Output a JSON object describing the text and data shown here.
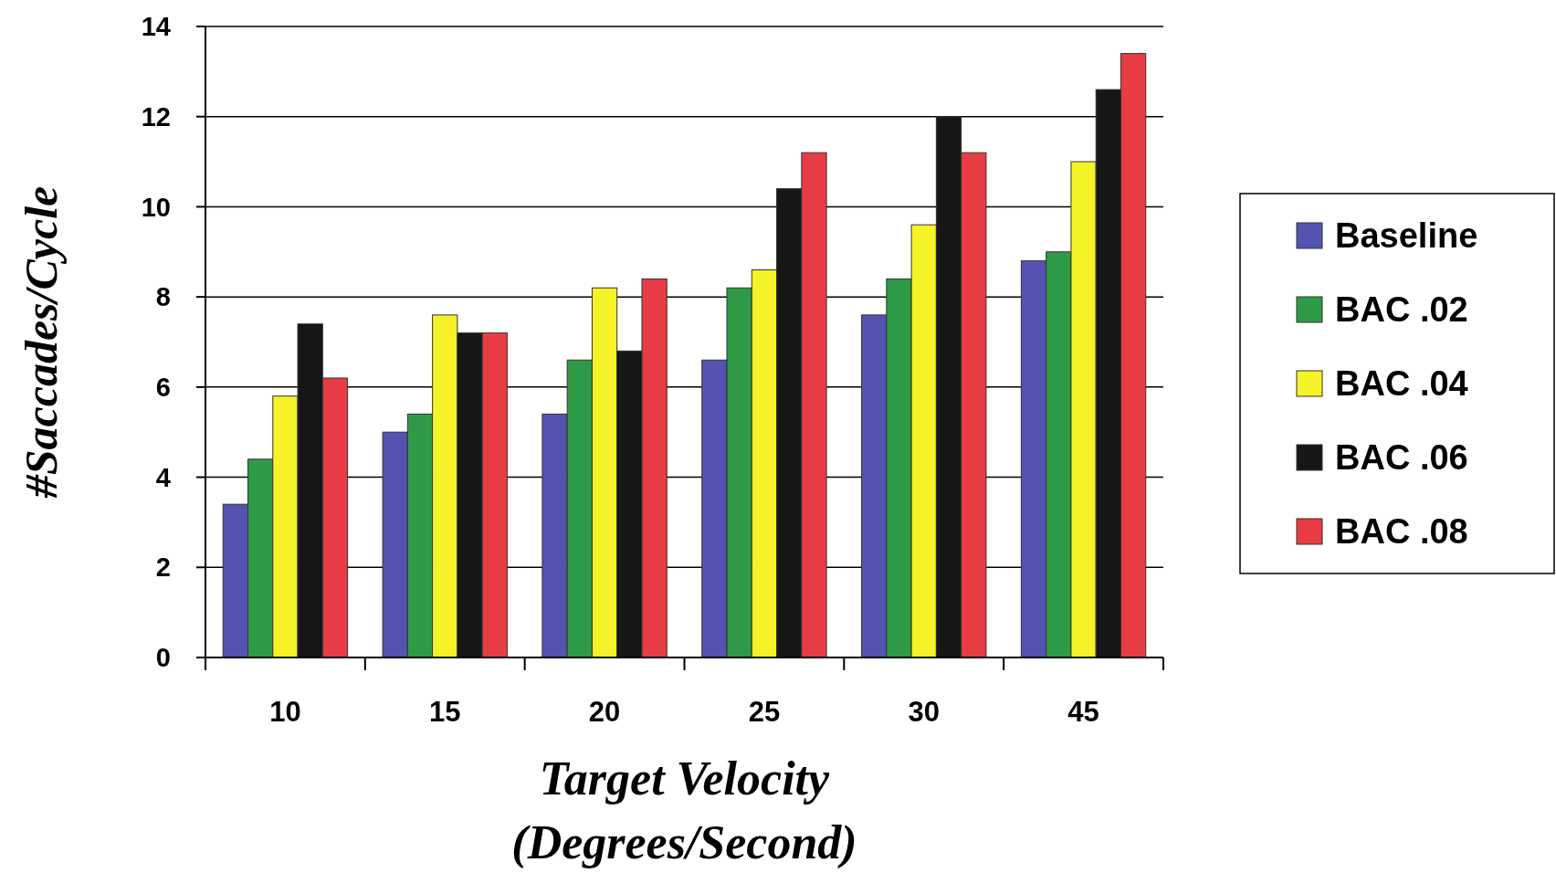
{
  "chart_data": {
    "type": "bar",
    "xlabel": "Target Velocity\n(Degrees/Second)",
    "ylabel": "#Saccades/Cycle",
    "categories": [
      "10",
      "15",
      "20",
      "25",
      "30",
      "45"
    ],
    "series": [
      {
        "name": "Baseline",
        "color": "#5454b0",
        "values": [
          3.4,
          5.0,
          5.4,
          6.6,
          7.6,
          8.8
        ]
      },
      {
        "name": "BAC .02",
        "color": "#2e9a48",
        "values": [
          4.4,
          5.4,
          6.6,
          8.2,
          8.4,
          9.0
        ]
      },
      {
        "name": "BAC .04",
        "color": "#f5f227",
        "values": [
          5.8,
          7.6,
          8.2,
          8.6,
          9.6,
          11.0
        ]
      },
      {
        "name": "BAC .06",
        "color": "#161616",
        "values": [
          7.4,
          7.2,
          6.8,
          10.4,
          12.0,
          12.6
        ]
      },
      {
        "name": "BAC .08",
        "color": "#e83c44",
        "values": [
          6.2,
          7.2,
          8.4,
          11.2,
          11.2,
          13.4
        ]
      }
    ],
    "ylim": [
      0,
      14
    ],
    "yticks": [
      0,
      2,
      4,
      6,
      8,
      10,
      12,
      14
    ],
    "grid": "y",
    "legend": "right"
  }
}
